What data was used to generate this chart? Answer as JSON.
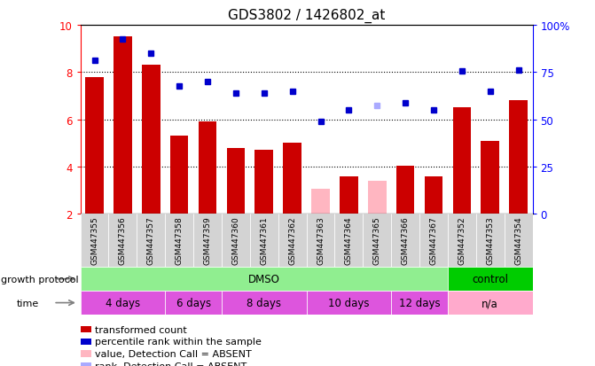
{
  "title": "GDS3802 / 1426802_at",
  "samples": [
    "GSM447355",
    "GSM447356",
    "GSM447357",
    "GSM447358",
    "GSM447359",
    "GSM447360",
    "GSM447361",
    "GSM447362",
    "GSM447363",
    "GSM447364",
    "GSM447365",
    "GSM447366",
    "GSM447367",
    "GSM447352",
    "GSM447353",
    "GSM447354"
  ],
  "bar_values": [
    7.8,
    9.5,
    8.3,
    5.3,
    5.9,
    4.8,
    4.7,
    5.0,
    3.05,
    3.6,
    3.4,
    4.05,
    3.6,
    6.5,
    5.1,
    6.8
  ],
  "bar_absent": [
    false,
    false,
    false,
    false,
    false,
    false,
    false,
    false,
    true,
    false,
    true,
    false,
    false,
    false,
    false,
    false
  ],
  "dot_values": [
    8.5,
    9.4,
    8.8,
    7.4,
    7.6,
    7.1,
    7.1,
    7.2,
    5.9,
    6.4,
    6.6,
    6.7,
    6.4,
    8.05,
    7.2,
    8.1
  ],
  "dot_absent": [
    false,
    false,
    false,
    false,
    false,
    false,
    false,
    false,
    false,
    false,
    true,
    false,
    false,
    false,
    false,
    false
  ],
  "ylim": [
    2,
    10
  ],
  "yticks": [
    2,
    4,
    6,
    8,
    10
  ],
  "right_yticks": [
    0,
    25,
    50,
    75,
    100
  ],
  "right_ylabels": [
    "0",
    "25",
    "50",
    "75",
    "100%"
  ],
  "bar_color_normal": "#cc0000",
  "bar_color_absent": "#ffb6c1",
  "dot_color_normal": "#0000cc",
  "dot_color_absent": "#aaaaff",
  "protocol_groups": [
    {
      "label": "DMSO",
      "start": 0,
      "end": 12,
      "color": "#90ee90"
    },
    {
      "label": "control",
      "start": 13,
      "end": 15,
      "color": "#00cc00"
    }
  ],
  "time_groups": [
    {
      "label": "4 days",
      "start": 0,
      "end": 2,
      "color": "#dd55dd"
    },
    {
      "label": "6 days",
      "start": 3,
      "end": 4,
      "color": "#dd55dd"
    },
    {
      "label": "8 days",
      "start": 5,
      "end": 7,
      "color": "#dd55dd"
    },
    {
      "label": "10 days",
      "start": 8,
      "end": 10,
      "color": "#dd55dd"
    },
    {
      "label": "12 days",
      "start": 11,
      "end": 12,
      "color": "#dd55dd"
    },
    {
      "label": "n/a",
      "start": 13,
      "end": 15,
      "color": "#ffaacc"
    }
  ],
  "legend_items": [
    {
      "label": "transformed count",
      "color": "#cc0000"
    },
    {
      "label": "percentile rank within the sample",
      "color": "#0000cc"
    },
    {
      "label": "value, Detection Call = ABSENT",
      "color": "#ffb6c1"
    },
    {
      "label": "rank, Detection Call = ABSENT",
      "color": "#aaaaff"
    }
  ],
  "growth_protocol_label": "growth protocol",
  "time_label": "time",
  "bg_color": "#ffffff",
  "sample_label_bg": "#d3d3d3"
}
